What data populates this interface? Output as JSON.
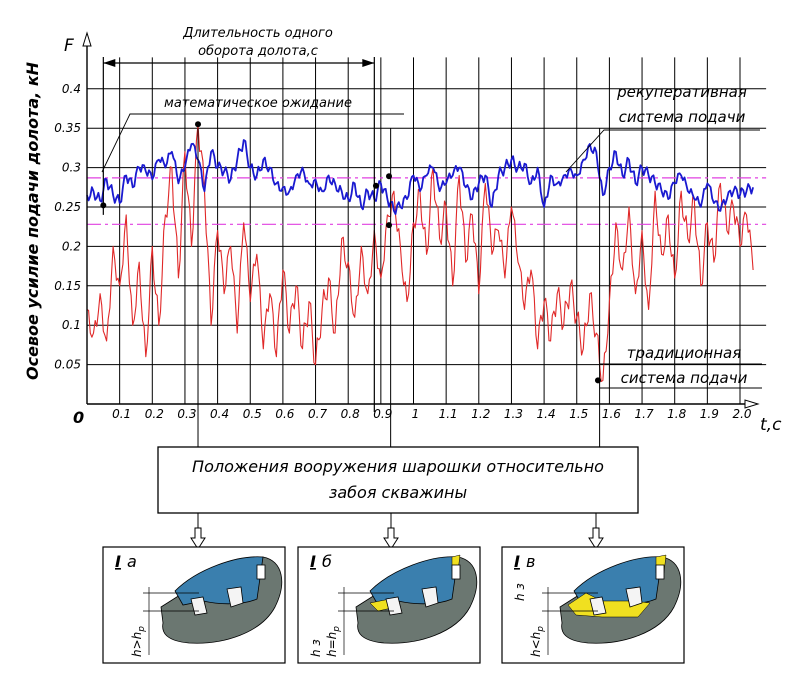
{
  "chart_data": {
    "type": "line",
    "ylabel": "Осевое усилие подачи долота, кН",
    "yaxis_letter": "F",
    "xlabel": "t,c",
    "origin_label": "0",
    "xlim": [
      0,
      2.08
    ],
    "ylim": [
      0,
      0.45
    ],
    "xticks": [
      0.1,
      0.2,
      0.3,
      0.4,
      0.5,
      0.6,
      0.7,
      0.8,
      0.9,
      1.0,
      1.1,
      1.2,
      1.3,
      1.4,
      1.5,
      1.6,
      1.7,
      1.8,
      1.9,
      2.0
    ],
    "xtick_labels": [
      "0.1",
      "0.2",
      "0.3",
      "0.4",
      "0.5",
      "0.6",
      "0.7",
      "0.8",
      "0.9",
      "1",
      "1.1",
      "1.2",
      "1.3",
      "1.4",
      "1.5",
      "1.6",
      "1.7",
      "1.8",
      "1.9",
      "2.0"
    ],
    "yticks": [
      0.05,
      0.1,
      0.15,
      0.2,
      0.25,
      0.3,
      0.35,
      0.4
    ],
    "ytick_labels": [
      "0.05",
      "0.1",
      "0.15",
      "0.2",
      "0.25",
      "0.3",
      "0.35",
      "0.4"
    ],
    "grid": true,
    "series": [
      {
        "name": "рекуперативная система подачи",
        "color": "#1a1ad0",
        "x": [
          0,
          0.02,
          0.04,
          0.06,
          0.08,
          0.1,
          0.12,
          0.14,
          0.16,
          0.18,
          0.2,
          0.22,
          0.24,
          0.26,
          0.28,
          0.3,
          0.32,
          0.34,
          0.36,
          0.38,
          0.4,
          0.42,
          0.44,
          0.46,
          0.48,
          0.5,
          0.52,
          0.54,
          0.56,
          0.58,
          0.6,
          0.62,
          0.64,
          0.66,
          0.68,
          0.7,
          0.72,
          0.74,
          0.76,
          0.78,
          0.8,
          0.82,
          0.84,
          0.86,
          0.88,
          0.9,
          0.92,
          0.94,
          0.96,
          0.98,
          1.0,
          1.02,
          1.04,
          1.06,
          1.08,
          1.1,
          1.12,
          1.14,
          1.16,
          1.18,
          1.2,
          1.22,
          1.24,
          1.26,
          1.28,
          1.3,
          1.32,
          1.34,
          1.36,
          1.38,
          1.4,
          1.42,
          1.44,
          1.46,
          1.48,
          1.5,
          1.52,
          1.54,
          1.56,
          1.58,
          1.6,
          1.62,
          1.64,
          1.66,
          1.68,
          1.7,
          1.72,
          1.74,
          1.76,
          1.78,
          1.8,
          1.82,
          1.84,
          1.86,
          1.88,
          1.9,
          1.92,
          1.94,
          1.96,
          1.98,
          2.0,
          2.02,
          2.04
        ],
        "values": [
          0.265,
          0.27,
          0.258,
          0.285,
          0.265,
          0.255,
          0.29,
          0.275,
          0.3,
          0.295,
          0.285,
          0.31,
          0.3,
          0.32,
          0.28,
          0.3,
          0.33,
          0.31,
          0.27,
          0.32,
          0.3,
          0.295,
          0.285,
          0.31,
          0.335,
          0.3,
          0.29,
          0.31,
          0.3,
          0.28,
          0.275,
          0.27,
          0.29,
          0.3,
          0.28,
          0.285,
          0.27,
          0.29,
          0.28,
          0.27,
          0.26,
          0.28,
          0.25,
          0.27,
          0.26,
          0.28,
          0.26,
          0.245,
          0.25,
          0.26,
          0.29,
          0.27,
          0.29,
          0.3,
          0.27,
          0.28,
          0.29,
          0.3,
          0.275,
          0.26,
          0.28,
          0.29,
          0.25,
          0.29,
          0.3,
          0.31,
          0.3,
          0.305,
          0.28,
          0.3,
          0.25,
          0.29,
          0.28,
          0.29,
          0.3,
          0.29,
          0.31,
          0.33,
          0.32,
          0.265,
          0.3,
          0.32,
          0.29,
          0.31,
          0.28,
          0.3,
          0.29,
          0.28,
          0.27,
          0.26,
          0.28,
          0.29,
          0.27,
          0.26,
          0.25,
          0.28,
          0.255,
          0.245,
          0.26,
          0.27,
          0.265,
          0.27,
          0.275
        ]
      },
      {
        "name": "традиционная система подачи",
        "color": "#e02828",
        "x": [
          0,
          0.02,
          0.04,
          0.06,
          0.08,
          0.1,
          0.12,
          0.14,
          0.16,
          0.18,
          0.2,
          0.22,
          0.24,
          0.26,
          0.28,
          0.3,
          0.32,
          0.34,
          0.36,
          0.38,
          0.4,
          0.42,
          0.44,
          0.46,
          0.48,
          0.5,
          0.52,
          0.54,
          0.56,
          0.58,
          0.6,
          0.62,
          0.64,
          0.66,
          0.68,
          0.7,
          0.72,
          0.74,
          0.76,
          0.78,
          0.8,
          0.82,
          0.84,
          0.86,
          0.88,
          0.9,
          0.92,
          0.94,
          0.96,
          0.98,
          1.0,
          1.02,
          1.04,
          1.06,
          1.08,
          1.1,
          1.12,
          1.14,
          1.16,
          1.18,
          1.2,
          1.22,
          1.24,
          1.26,
          1.28,
          1.3,
          1.32,
          1.34,
          1.36,
          1.38,
          1.4,
          1.42,
          1.44,
          1.46,
          1.48,
          1.5,
          1.52,
          1.54,
          1.56,
          1.58,
          1.6,
          1.62,
          1.64,
          1.66,
          1.68,
          1.7,
          1.72,
          1.74,
          1.76,
          1.78,
          1.8,
          1.82,
          1.84,
          1.86,
          1.88,
          1.9,
          1.92,
          1.94,
          1.96,
          1.98,
          2.0,
          2.02,
          2.04
        ],
        "values": [
          0.12,
          0.09,
          0.14,
          0.08,
          0.2,
          0.15,
          0.24,
          0.1,
          0.18,
          0.06,
          0.2,
          0.1,
          0.24,
          0.3,
          0.16,
          0.32,
          0.2,
          0.355,
          0.27,
          0.1,
          0.22,
          0.14,
          0.2,
          0.09,
          0.23,
          0.13,
          0.19,
          0.07,
          0.14,
          0.06,
          0.17,
          0.09,
          0.15,
          0.07,
          0.13,
          0.05,
          0.12,
          0.16,
          0.09,
          0.21,
          0.18,
          0.11,
          0.2,
          0.14,
          0.22,
          0.16,
          0.24,
          0.27,
          0.2,
          0.13,
          0.23,
          0.27,
          0.19,
          0.3,
          0.21,
          0.25,
          0.15,
          0.29,
          0.18,
          0.24,
          0.14,
          0.28,
          0.19,
          0.22,
          0.16,
          0.25,
          0.18,
          0.12,
          0.17,
          0.07,
          0.13,
          0.08,
          0.14,
          0.1,
          0.15,
          0.11,
          0.07,
          0.14,
          0.09,
          0.03,
          0.13,
          0.23,
          0.17,
          0.25,
          0.14,
          0.22,
          0.12,
          0.27,
          0.19,
          0.24,
          0.16,
          0.27,
          0.21,
          0.26,
          0.15,
          0.23,
          0.18,
          0.28,
          0.22,
          0.25,
          0.2,
          0.24,
          0.17
        ]
      }
    ],
    "expectation_lines": [
      0.287,
      0.228
    ],
    "expectation_color": "#e040e0",
    "annotations": {
      "duration_line1": "Длительность одного",
      "duration_line2": "оборота долота,с",
      "duration_from": 0.05,
      "duration_to": 0.88,
      "expectation_label": "математическое ожидание",
      "recup_line1": "рекуперативная",
      "recup_line2": "система подачи",
      "trad_line1": "традиционная",
      "trad_line2": "система подачи",
      "callout_points": [
        {
          "x": 0.05,
          "y": 0.252
        },
        {
          "x": 0.34,
          "y": 0.355
        },
        {
          "x": 0.885,
          "y": 0.277
        },
        {
          "x": 0.925,
          "y": 0.289
        },
        {
          "x": 0.925,
          "y": 0.227
        },
        {
          "x": 1.565,
          "y": 0.03
        }
      ],
      "drop_lines_x": [
        0.34,
        0.93,
        1.57
      ]
    }
  },
  "positions_box": {
    "line1": "Положения вооружения шарошки относительно",
    "line2": "забоя скважины"
  },
  "panels": [
    {
      "roman": "I",
      "letter": "а",
      "dim1": "h>h",
      "dim1_sub": "р",
      "dim2": "",
      "dim2_sub": ""
    },
    {
      "roman": "I",
      "letter": "б",
      "dim1": "h=h",
      "dim1_sub": "р",
      "dim2": "h з",
      "dim2_sub": ""
    },
    {
      "roman": "I",
      "letter": "в",
      "dim1": "h<h",
      "dim1_sub": "р",
      "dim2": "h з",
      "dim2_sub": ""
    }
  ],
  "colors": {
    "tooth_blue": "#3a7fae",
    "rock_gray": "#6b7771",
    "yellow": "#f0e020",
    "grid": "#000000"
  }
}
